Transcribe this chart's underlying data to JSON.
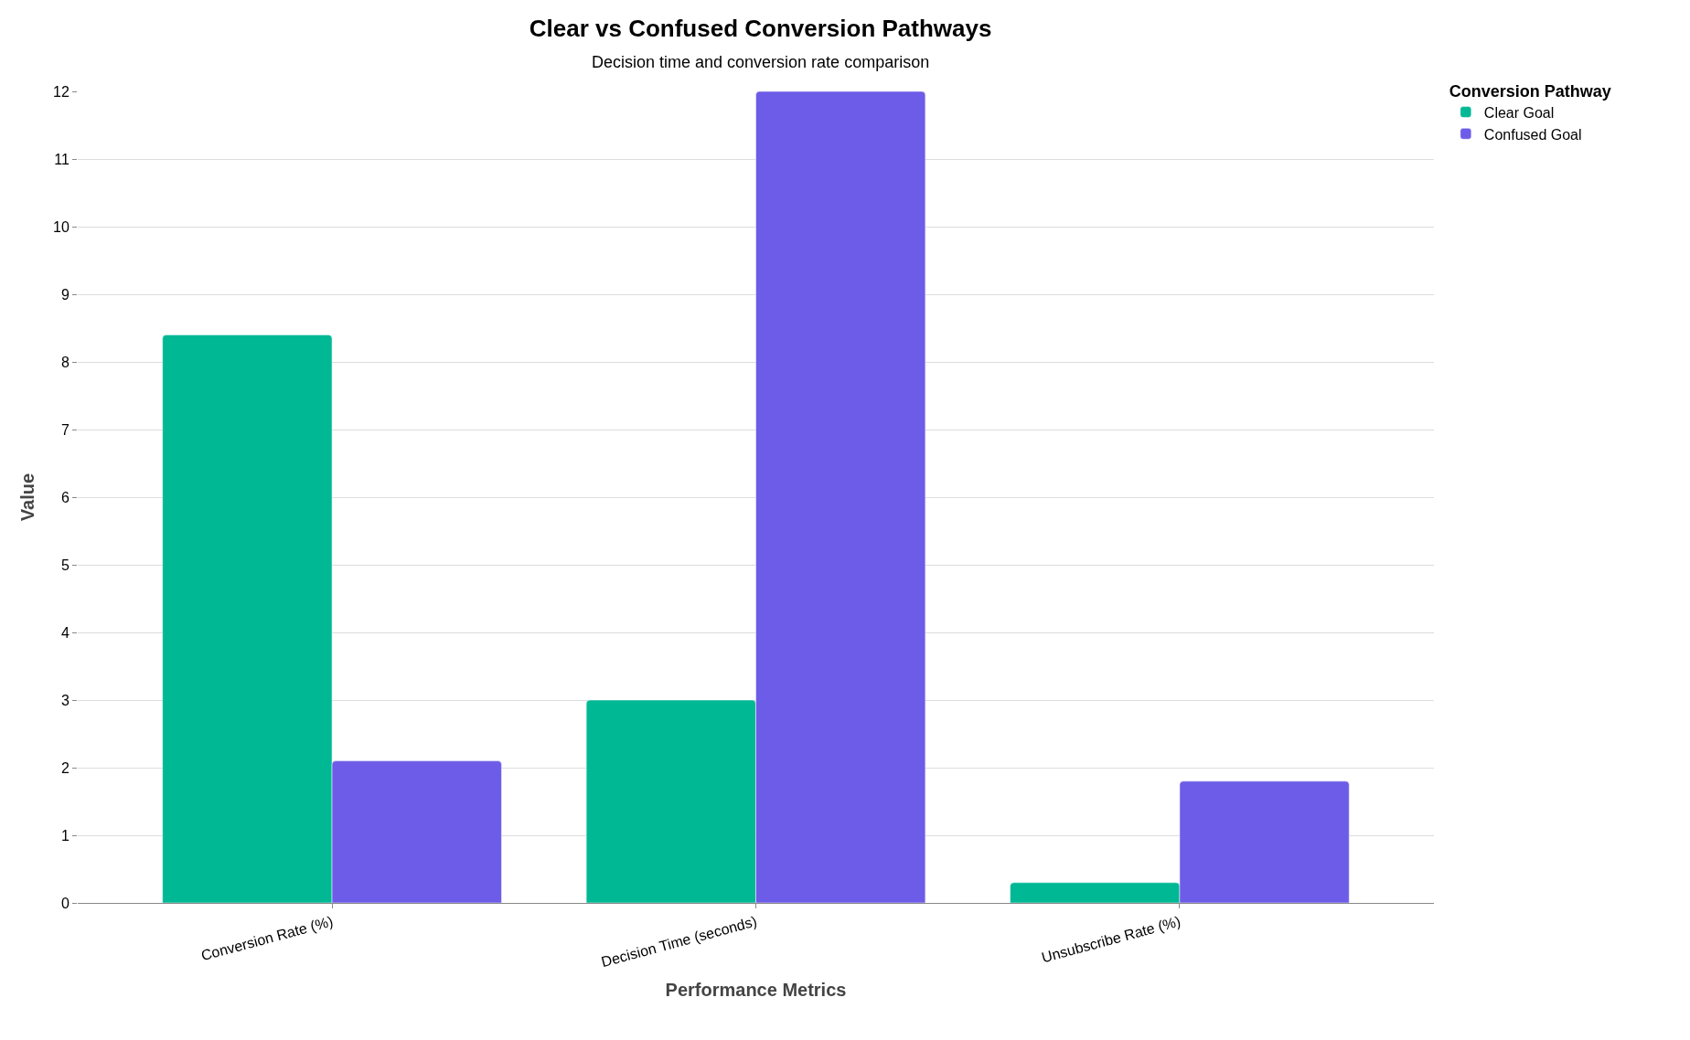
{
  "chart_data": {
    "type": "bar",
    "title": "Clear vs Confused Conversion Pathways",
    "subtitle": "Decision time and conversion rate comparison",
    "xlabel": "Performance Metrics",
    "ylabel": "Value",
    "legend_title": "Conversion Pathway",
    "categories": [
      "Conversion Rate (%)",
      "Decision Time (seconds)",
      "Unsubscribe Rate (%)"
    ],
    "series": [
      {
        "name": "Clear Goal",
        "color": "#00b894",
        "values": [
          8.4,
          3,
          0.3
        ]
      },
      {
        "name": "Confused Goal",
        "color": "#6c5ce7",
        "values": [
          2.1,
          12,
          1.8
        ]
      }
    ],
    "ylim": [
      0,
      12
    ],
    "yticks": [
      0,
      1,
      2,
      3,
      4,
      5,
      6,
      7,
      8,
      9,
      10,
      11,
      12
    ],
    "grid": "y",
    "legend": "top right"
  }
}
